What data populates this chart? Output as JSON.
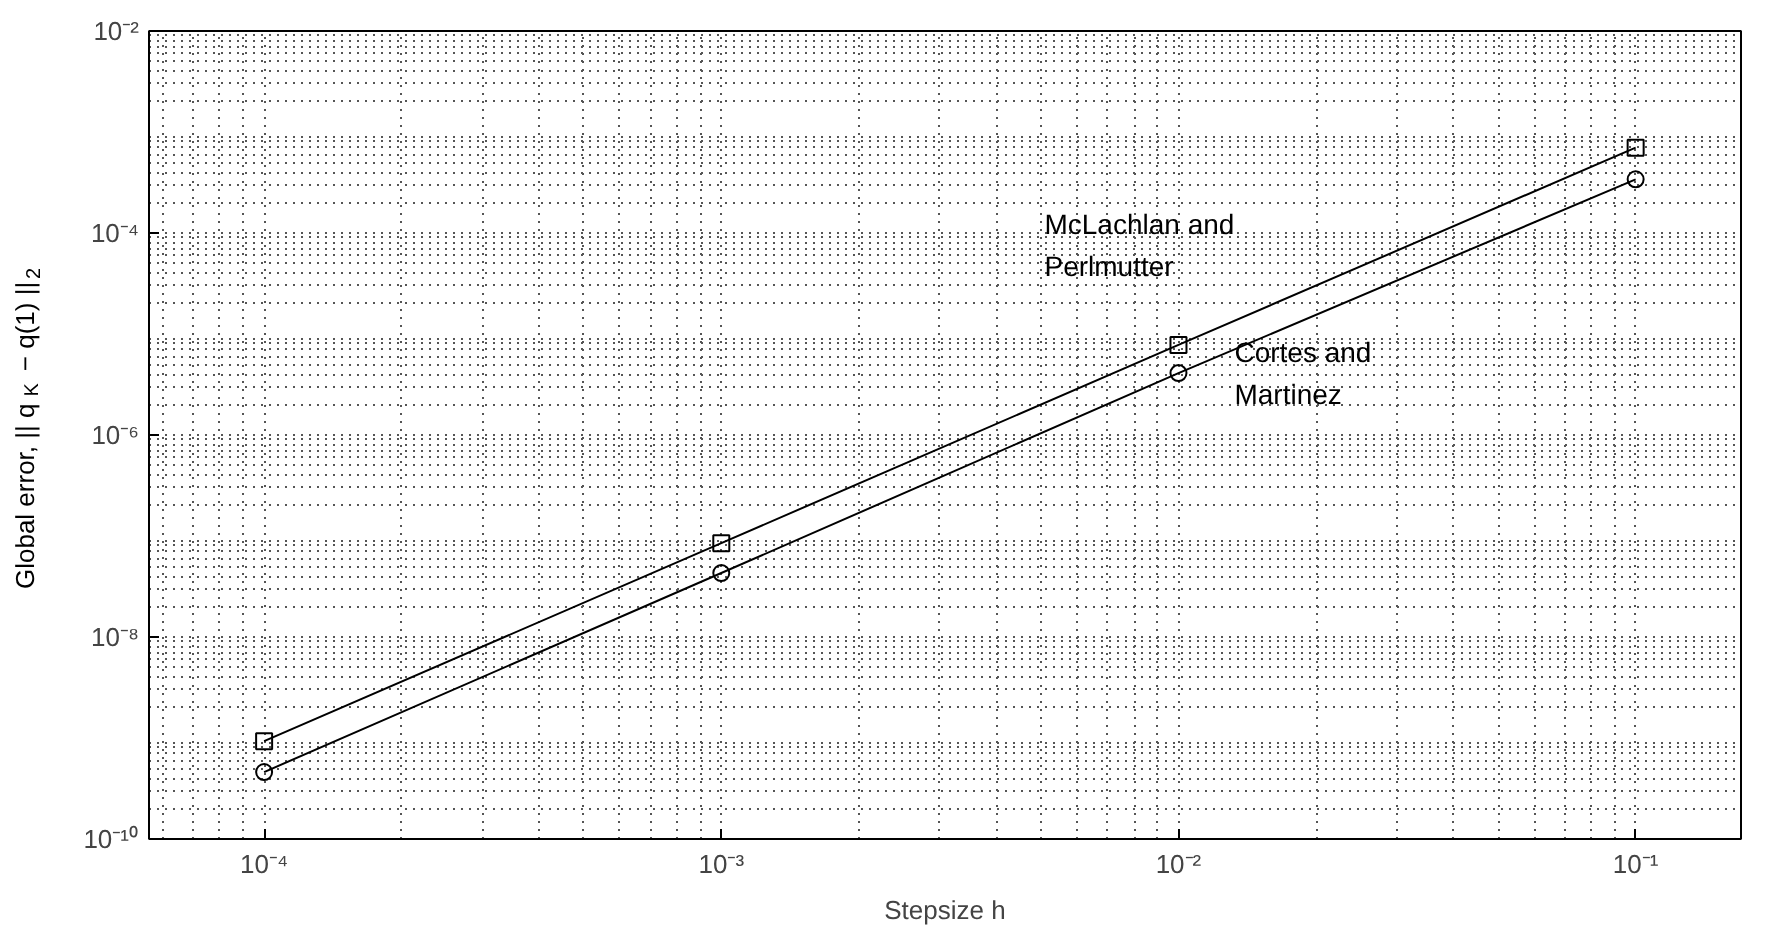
{
  "chart_data": {
    "type": "line",
    "xlabel": "Stepsize h",
    "ylabel": "Global error, || q$_{K}$ − q(1) ||$_{2}$",
    "log": "xy",
    "grid": true,
    "x": [
      0.0001,
      0.001,
      0.01,
      0.1
    ],
    "xlim": [
      5.6e-05,
      0.17
    ],
    "ylim": [
      1e-10,
      0.01
    ],
    "xticks": [
      {
        "value": 0.0001,
        "label": "10⁻⁴"
      },
      {
        "value": 0.001,
        "label": "10⁻³"
      },
      {
        "value": 0.01,
        "label": "10⁻²"
      },
      {
        "value": 0.1,
        "label": "10⁻¹"
      }
    ],
    "yticks": [
      {
        "value": 1e-10,
        "label": "10⁻¹⁰"
      },
      {
        "value": 1e-08,
        "label": "10⁻⁸"
      },
      {
        "value": 1e-06,
        "label": "10⁻⁶"
      },
      {
        "value": 0.0001,
        "label": "10⁻⁴"
      },
      {
        "value": 0.01,
        "label": "10⁻²"
      }
    ],
    "series": [
      {
        "name": "McLachlan and Perlmutter",
        "color": "#000000",
        "marker": "square",
        "values": [
          9.3e-10,
          8.5e-08,
          7.8e-06,
          0.0007
        ]
      },
      {
        "name": "Cortes and Martinez",
        "color": "#000000",
        "marker": "circle",
        "values": [
          4.6e-10,
          4.3e-08,
          4.1e-06,
          0.00034
        ]
      }
    ]
  }
}
